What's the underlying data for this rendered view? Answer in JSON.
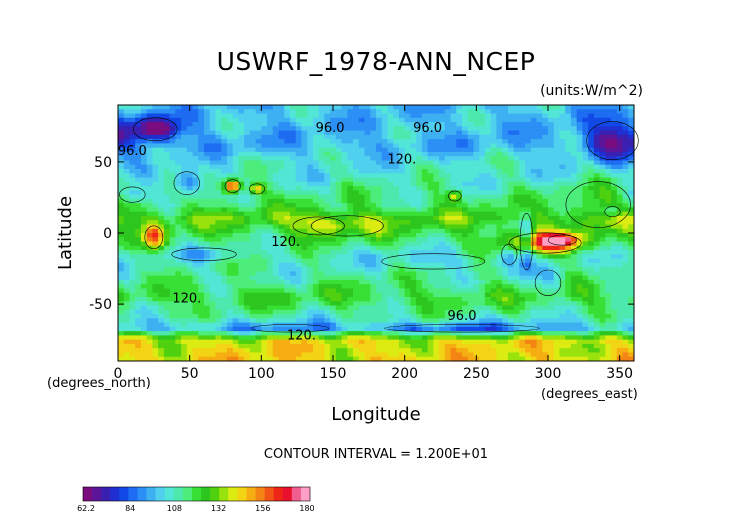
{
  "chart_data": {
    "type": "heatmap",
    "title": "USWRF_1978-ANN_NCEP",
    "units_label": "(units:W/m^2)",
    "xlabel": "Longitude",
    "ylabel": "Latitude",
    "x_unit_label": "(degrees_east)",
    "y_unit_label": "(degrees_north)",
    "xlim": [
      0,
      360
    ],
    "ylim": [
      -90,
      90
    ],
    "x_ticks": [
      0,
      50,
      100,
      150,
      200,
      250,
      300,
      350
    ],
    "y_ticks": [
      -50,
      0,
      50
    ],
    "contour_interval_text": "CONTOUR INTERVAL = 1.200E+01",
    "contour_labels": [
      {
        "text": "96.0",
        "lon": 148,
        "lat": 71
      },
      {
        "text": "96.0",
        "lon": 216,
        "lat": 71
      },
      {
        "text": "96.0",
        "lon": 10,
        "lat": 55
      },
      {
        "text": "120.",
        "lon": 198,
        "lat": 49
      },
      {
        "text": "120.",
        "lon": 117,
        "lat": -9
      },
      {
        "text": "120.",
        "lon": 48,
        "lat": -49
      },
      {
        "text": "96.0",
        "lon": 240,
        "lat": -61
      },
      {
        "text": "120.",
        "lon": 128,
        "lat": -75
      }
    ],
    "colorbar": {
      "tick_labels": [
        "62.2",
        "84",
        "108",
        "132",
        "156",
        "180"
      ],
      "range": [
        62.2,
        180
      ]
    },
    "field": {
      "description_values_in": "W/m^2",
      "base_by_latitude": [
        [
          -90,
          144
        ],
        [
          -75,
          140
        ],
        [
          -67,
          98
        ],
        [
          -58,
          112
        ],
        [
          -45,
          122
        ],
        [
          -30,
          112
        ],
        [
          -15,
          110
        ],
        [
          0,
          120
        ],
        [
          10,
          128
        ],
        [
          20,
          118
        ],
        [
          35,
          110
        ],
        [
          50,
          106
        ],
        [
          62,
          98
        ],
        [
          75,
          100
        ],
        [
          90,
          100
        ]
      ],
      "features": [
        {
          "lon": 298,
          "lat": -7,
          "rlon": 28,
          "rlat": 8,
          "amp": 50
        },
        {
          "lon": 310,
          "lat": -5,
          "rlon": 11,
          "rlat": 4,
          "amp": 24
        },
        {
          "lon": 25,
          "lat": -3,
          "rlon": 7,
          "rlat": 9,
          "amp": 38
        },
        {
          "lon": 80,
          "lat": 33,
          "rlon": 6,
          "rlat": 5,
          "amp": 60
        },
        {
          "lon": 97,
          "lat": 31,
          "rlon": 6,
          "rlat": 4,
          "amp": 34
        },
        {
          "lon": 140,
          "lat": 5,
          "rlon": 20,
          "rlat": 7,
          "amp": 14
        },
        {
          "lon": 160,
          "lat": 5,
          "rlon": 28,
          "rlat": 8,
          "amp": 10
        },
        {
          "lon": 235,
          "lat": 26,
          "rlon": 5,
          "rlat": 4,
          "amp": 26
        },
        {
          "lon": 335,
          "lat": 20,
          "rlon": 25,
          "rlat": 18,
          "amp": 8
        },
        {
          "lon": 26,
          "lat": 73,
          "rlon": 17,
          "rlat": 9,
          "amp": -44
        },
        {
          "lon": 345,
          "lat": 65,
          "rlon": 20,
          "rlat": 15,
          "amp": -30
        },
        {
          "lon": 48,
          "lat": 35,
          "rlon": 10,
          "rlat": 9,
          "amp": -24
        },
        {
          "lon": 10,
          "lat": 27,
          "rlon": 10,
          "rlat": 6,
          "amp": -18
        },
        {
          "lon": 285,
          "lat": -6,
          "rlon": 5,
          "rlat": 22,
          "amp": -26
        },
        {
          "lon": 273,
          "lat": -15,
          "rlon": 6,
          "rlat": 8,
          "amp": -18
        },
        {
          "lon": 345,
          "lat": 15,
          "rlon": 6,
          "rlat": 4,
          "amp": -20
        },
        {
          "lon": 60,
          "lat": -15,
          "rlon": 25,
          "rlat": 5,
          "amp": -8
        },
        {
          "lon": 220,
          "lat": -20,
          "rlon": 40,
          "rlat": 6,
          "amp": -8
        },
        {
          "lon": 300,
          "lat": -35,
          "rlon": 10,
          "rlat": 10,
          "amp": -10
        },
        {
          "lon": 240,
          "lat": -67,
          "rlon": 60,
          "rlat": 3,
          "amp": -12
        },
        {
          "lon": 120,
          "lat": -67,
          "rlon": 30,
          "rlat": 3,
          "amp": -8
        }
      ]
    }
  }
}
